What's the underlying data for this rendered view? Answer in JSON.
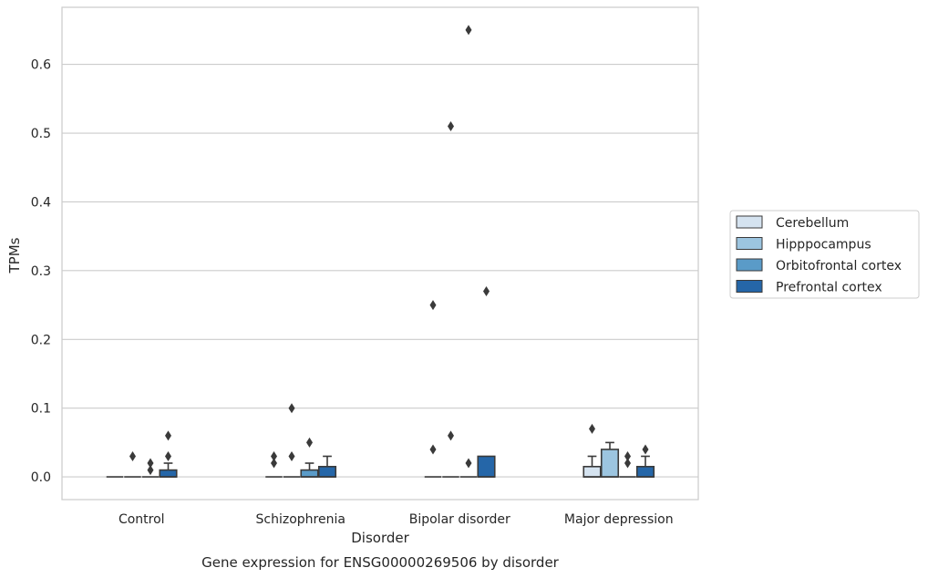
{
  "chart_data": {
    "type": "box",
    "caption": "Gene expression for ENSG00000269506 by disorder",
    "xlabel": "Disorder",
    "ylabel": "TPMs",
    "ylim": [
      -0.033,
      0.683
    ],
    "yticks": [
      "0.0",
      "0.1",
      "0.2",
      "0.3",
      "0.4",
      "0.5",
      "0.6"
    ],
    "grid": "horizontal",
    "legend_position": "right",
    "categories": [
      "Control",
      "Schizophrenia",
      "Bipolar disorder",
      "Major depression"
    ],
    "series": [
      {
        "name": "Cerebellum",
        "color": "#d5e3f0",
        "boxes": [
          {
            "q1": 0,
            "median": 0,
            "q3": 0,
            "whisker_low": 0,
            "whisker_high": 0,
            "outliers": []
          },
          {
            "q1": 0,
            "median": 0,
            "q3": 0,
            "whisker_low": 0,
            "whisker_high": 0,
            "outliers": [
              0.02,
              0.03
            ]
          },
          {
            "q1": 0,
            "median": 0,
            "q3": 0,
            "whisker_low": 0,
            "whisker_high": 0,
            "outliers": [
              0.04,
              0.25
            ]
          },
          {
            "q1": 0,
            "median": 0,
            "q3": 0.015,
            "whisker_low": 0,
            "whisker_high": 0.03,
            "outliers": [
              0.07
            ]
          }
        ]
      },
      {
        "name": "Hipppocampus",
        "color": "#9cc5e0",
        "boxes": [
          {
            "q1": 0,
            "median": 0,
            "q3": 0,
            "whisker_low": 0,
            "whisker_high": 0,
            "outliers": [
              0.03
            ]
          },
          {
            "q1": 0,
            "median": 0,
            "q3": 0,
            "whisker_low": 0,
            "whisker_high": 0,
            "outliers": [
              0.03,
              0.1
            ]
          },
          {
            "q1": 0,
            "median": 0,
            "q3": 0,
            "whisker_low": 0,
            "whisker_high": 0,
            "outliers": [
              0.06,
              0.51
            ]
          },
          {
            "q1": 0,
            "median": 0,
            "q3": 0.04,
            "whisker_low": 0,
            "whisker_high": 0.05,
            "outliers": []
          }
        ]
      },
      {
        "name": "Orbitofrontal cortex",
        "color": "#5a9bc8",
        "boxes": [
          {
            "q1": 0,
            "median": 0,
            "q3": 0,
            "whisker_low": 0,
            "whisker_high": 0,
            "outliers": [
              0.01,
              0.02
            ]
          },
          {
            "q1": 0,
            "median": 0,
            "q3": 0.01,
            "whisker_low": 0,
            "whisker_high": 0.02,
            "outliers": [
              0.05
            ]
          },
          {
            "q1": 0,
            "median": 0,
            "q3": 0,
            "whisker_low": 0,
            "whisker_high": 0,
            "outliers": [
              0.02,
              0.65
            ]
          },
          {
            "q1": 0,
            "median": 0,
            "q3": 0,
            "whisker_low": 0,
            "whisker_high": 0,
            "outliers": [
              0.02,
              0.03
            ]
          }
        ]
      },
      {
        "name": "Prefrontal cortex",
        "color": "#2566a8",
        "boxes": [
          {
            "q1": 0,
            "median": 0,
            "q3": 0.01,
            "whisker_low": 0,
            "whisker_high": 0.02,
            "outliers": [
              0.03,
              0.06
            ]
          },
          {
            "q1": 0,
            "median": 0,
            "q3": 0.015,
            "whisker_low": 0,
            "whisker_high": 0.03,
            "outliers": []
          },
          {
            "q1": 0,
            "median": 0,
            "q3": 0.03,
            "whisker_low": 0,
            "whisker_high": 0.03,
            "outliers": [
              0.27
            ]
          },
          {
            "q1": 0,
            "median": 0,
            "q3": 0.015,
            "whisker_low": 0,
            "whisker_high": 0.03,
            "outliers": [
              0.04
            ]
          }
        ]
      }
    ]
  }
}
